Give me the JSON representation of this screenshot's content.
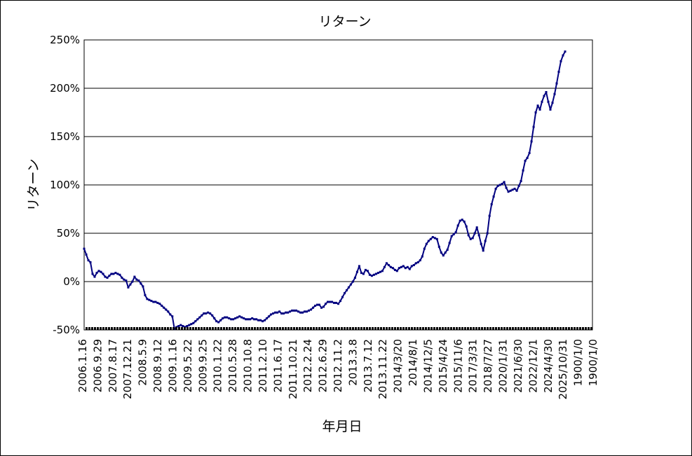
{
  "chart_data": {
    "type": "line",
    "title": "リターン",
    "xlabel": "年月日",
    "ylabel": "リターン",
    "ylim": [
      -50,
      250
    ],
    "yticks": [
      "250%",
      "200%",
      "150%",
      "100%",
      "50%",
      "0%",
      "-50%"
    ],
    "ytick_values": [
      250,
      200,
      150,
      100,
      50,
      0,
      -50
    ],
    "xtick_labels": [
      "2006.1.16",
      "2006.9.29",
      "2007.8.17",
      "2007.12.21",
      "2008.5.9",
      "2008.9.12",
      "2009.1.16",
      "2009.5.22",
      "2009.9.25",
      "2010.1.22",
      "2010.5.28",
      "2010.10.8",
      "2011.2.10",
      "2011.6.17",
      "2011.10.21",
      "2012.2.24",
      "2012.6.29",
      "2012.11.2",
      "2013.3.8",
      "2013.7.12",
      "2013.11.22",
      "2014/3/20",
      "2014/8/1",
      "2014/12/5",
      "2015/4/24",
      "2015/11/6",
      "2017/3/31",
      "2018/7/27",
      "2020/1/31",
      "2021/6/30",
      "2022/12/1",
      "2024/4/30",
      "2025/10/31",
      "1900/1/0",
      "1900/1/0"
    ],
    "grid": true,
    "line_color": "#000080",
    "series": [
      {
        "values": [
          34,
          28,
          22,
          20,
          8,
          5,
          9,
          11,
          10,
          8,
          5,
          4,
          6,
          8,
          8,
          9,
          8,
          7,
          4,
          2,
          1,
          -6,
          -3,
          0,
          5,
          2,
          1,
          -2,
          -5,
          -14,
          -18,
          -19,
          -20,
          -21,
          -21,
          -22,
          -23,
          -25,
          -27,
          -29,
          -31,
          -34,
          -36,
          -49,
          -47,
          -46,
          -45,
          -46,
          -47,
          -46,
          -45,
          -44,
          -43,
          -41,
          -39,
          -37,
          -35,
          -33,
          -33,
          -32,
          -33,
          -35,
          -38,
          -41,
          -42,
          -40,
          -38,
          -37,
          -37,
          -38,
          -39,
          -39,
          -38,
          -37,
          -36,
          -37,
          -38,
          -39,
          -39,
          -39,
          -38,
          -39,
          -39,
          -40,
          -40,
          -41,
          -40,
          -38,
          -36,
          -34,
          -33,
          -32,
          -32,
          -31,
          -33,
          -33,
          -32,
          -32,
          -31,
          -30,
          -30,
          -30,
          -31,
          -32,
          -32,
          -31,
          -31,
          -30,
          -29,
          -27,
          -25,
          -24,
          -24,
          -27,
          -26,
          -23,
          -21,
          -21,
          -21,
          -22,
          -22,
          -23,
          -20,
          -16,
          -12,
          -9,
          -6,
          -3,
          0,
          4,
          10,
          16,
          9,
          8,
          12,
          11,
          7,
          6,
          7,
          8,
          9,
          10,
          11,
          15,
          19,
          17,
          15,
          14,
          12,
          11,
          14,
          15,
          16,
          14,
          15,
          13,
          16,
          17,
          19,
          20,
          22,
          26,
          34,
          39,
          42,
          44,
          46,
          45,
          44,
          36,
          30,
          27,
          30,
          33,
          40,
          47,
          49,
          51,
          58,
          63,
          64,
          62,
          57,
          48,
          44,
          45,
          50,
          56,
          48,
          39,
          32,
          42,
          50,
          68,
          80,
          88,
          96,
          99,
          100,
          101,
          103,
          97,
          93,
          94,
          95,
          96,
          94,
          99,
          104,
          115,
          125,
          128,
          133,
          145,
          160,
          175,
          182,
          178,
          186,
          192,
          196,
          186,
          178,
          185,
          194,
          205,
          217,
          228,
          234,
          238
        ]
      }
    ]
  }
}
